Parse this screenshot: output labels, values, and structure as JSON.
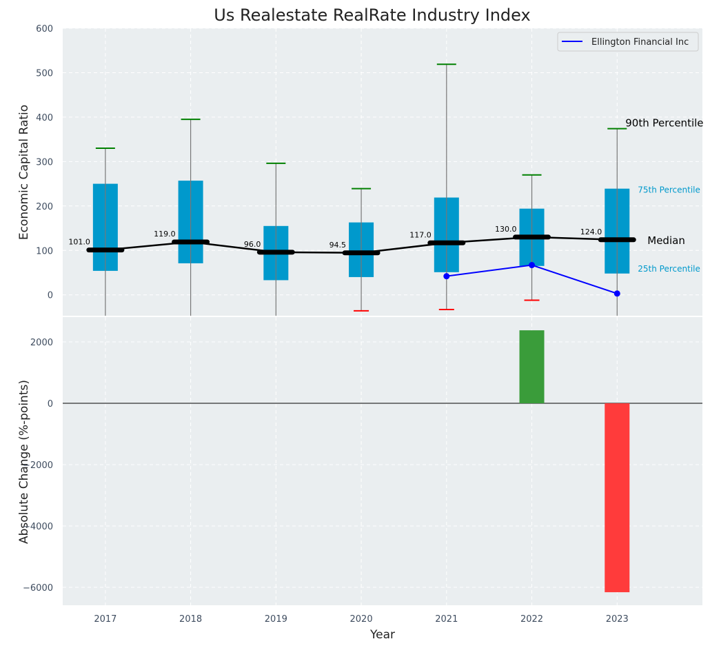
{
  "chart_data": [
    {
      "type": "box",
      "title": "Us Realestate RealRate Industry Index",
      "ylabel": "Economic Capital Ratio",
      "xlabel": "",
      "ylim": [
        -47,
        600
      ],
      "xlim": [
        2016.5,
        2024.0
      ],
      "yticks": [
        0,
        100,
        200,
        300,
        400,
        500,
        600
      ],
      "grid": true,
      "legend": {
        "placement": "top-right",
        "entries": [
          "Ellington Financial Inc"
        ]
      },
      "years": [
        2017,
        2018,
        2019,
        2020,
        2021,
        2022,
        2023
      ],
      "p90": [
        330,
        395,
        296,
        239,
        519,
        270,
        374
      ],
      "p75": [
        250,
        257,
        155,
        163,
        219,
        194,
        239
      ],
      "median": [
        101.0,
        119.0,
        96.0,
        94.5,
        117.0,
        130.0,
        124.0
      ],
      "median_labels": [
        "101.0",
        "119.0",
        "96.0",
        "94.5",
        "117.0",
        "130.0",
        "124.0"
      ],
      "p25": [
        54,
        71,
        33,
        40,
        51,
        65,
        48
      ],
      "p10": [
        -60,
        -60,
        -60,
        -36,
        -33,
        -12,
        -60
      ],
      "company": {
        "name": "Ellington Financial Inc",
        "years": [
          2021,
          2022,
          2023
        ],
        "values": [
          42,
          67,
          3
        ]
      },
      "annotations": {
        "p90": "90th Percentile",
        "p75": "75th Percentile",
        "median": "Median",
        "p25": "25th Percentile"
      },
      "colors": {
        "box": "#0099cc",
        "cap_high": "#008000",
        "cap_low": "#ff0000",
        "company": "#0000ff",
        "median": "#000000",
        "bg": "#eaeef0"
      }
    },
    {
      "type": "bar",
      "ylabel": "Absolute Change (%-points)",
      "xlabel": "Year",
      "ylim": [
        -6585,
        2810
      ],
      "yticks": [
        -6000,
        -4000,
        -2000,
        0,
        2000
      ],
      "categories": [
        2017,
        2018,
        2019,
        2020,
        2021,
        2022,
        2023
      ],
      "values": [
        null,
        null,
        null,
        null,
        null,
        2380,
        -6160
      ],
      "colors": {
        "positive": "#3a9c3a",
        "negative": "#ff3b3b"
      }
    }
  ]
}
